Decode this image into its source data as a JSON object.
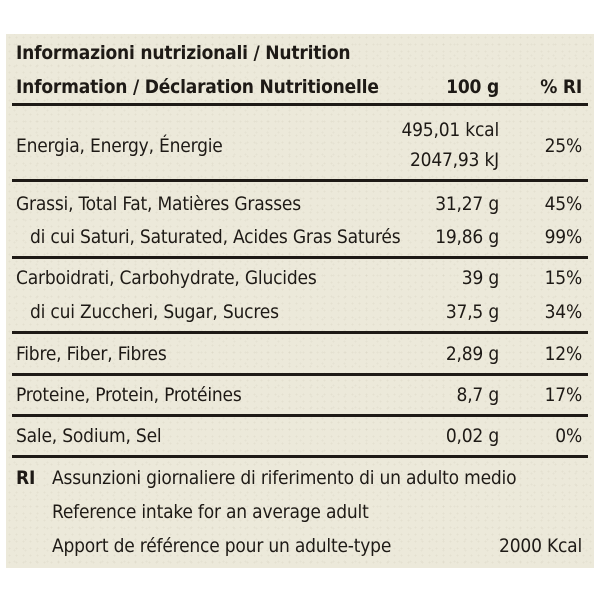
{
  "header": {
    "title_line1": "Informazioni nutrizionali / Nutrition",
    "title_line2": "Information / Déclaration Nutritionelle",
    "col_100g": "100 g",
    "col_ri": "% RI"
  },
  "rows": [
    {
      "label": "Energia, Energy, Énergie",
      "value_line1": "495,01 kcal",
      "value_line2": "2047,93 kJ",
      "ri": "25%"
    },
    {
      "label": "Grassi, Total Fat, Matières Grasses",
      "value": "31,27 g",
      "ri": "45%"
    },
    {
      "label": "di cui Saturi, Saturated, Acides Gras Saturés",
      "value": "19,86 g",
      "ri": "99%"
    },
    {
      "label": "Carboidrati, Carbohydrate, Glucides",
      "value": "39 g",
      "ri": "15%"
    },
    {
      "label": "di cui Zuccheri, Sugar, Sucres",
      "value": "37,5 g",
      "ri": "34%"
    },
    {
      "label": "Fibre, Fiber, Fibres",
      "value": "2,89 g",
      "ri": "12%"
    },
    {
      "label": "Proteine, Protein, Protéines",
      "value": "8,7 g",
      "ri": "17%"
    },
    {
      "label": "Sale, Sodium, Sel",
      "value": "0,02 g",
      "ri": "0%"
    }
  ],
  "footer": {
    "abbr": "RI",
    "line1": "Assunzioni giornaliere di riferimento di un adulto medio",
    "line2": "Reference intake for an average adult",
    "line3": "Apport de référence pour un adulte-type",
    "kcal": "2000 Kcal"
  }
}
